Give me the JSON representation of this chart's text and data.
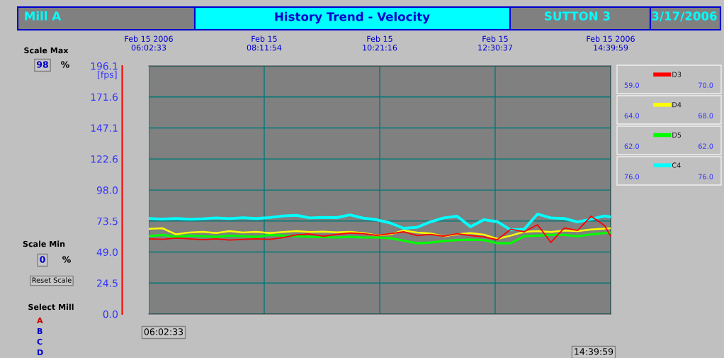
{
  "chart_data": {
    "type": "line",
    "title": "History Trend - Velocity",
    "ylabel": "[fps]",
    "x": [
      "2006-02-15T06:03",
      "2006-02-15T06:18",
      "2006-02-15T06:33",
      "2006-02-15T06:48",
      "2006-02-15T07:03",
      "2006-02-15T07:18",
      "2006-02-15T07:33",
      "2006-02-15T07:48",
      "2006-02-15T08:03",
      "2006-02-15T08:18",
      "2006-02-15T08:33",
      "2006-02-15T08:48",
      "2006-02-15T09:03",
      "2006-02-15T09:18",
      "2006-02-15T09:33",
      "2006-02-15T09:48",
      "2006-02-15T10:03",
      "2006-02-15T10:18",
      "2006-02-15T10:33",
      "2006-02-15T10:48",
      "2006-02-15T11:03",
      "2006-02-15T11:18",
      "2006-02-15T11:33",
      "2006-02-15T11:48",
      "2006-02-15T12:03",
      "2006-02-15T12:18",
      "2006-02-15T12:33",
      "2006-02-15T12:48",
      "2006-02-15T13:03",
      "2006-02-15T13:18",
      "2006-02-15T13:33",
      "2006-02-15T13:48",
      "2006-02-15T14:03",
      "2006-02-15T14:18",
      "2006-02-15T14:33",
      "2006-02-15T14:39:59"
    ],
    "series": [
      {
        "name": "D3",
        "color": "#ff0000",
        "values": [
          59.4,
          59.0,
          60.0,
          59.5,
          58.8,
          59.5,
          58.5,
          59.0,
          59.5,
          59.0,
          60.5,
          62.5,
          63.3,
          61.5,
          63.0,
          64.0,
          63.5,
          62.2,
          63.5,
          65.0,
          62.0,
          63.0,
          61.5,
          63.5,
          62.0,
          61.0,
          58.8,
          67.0,
          65.0,
          70.6,
          56.6,
          68.0,
          66.0,
          77.3,
          70.0,
          61.6
        ]
      },
      {
        "name": "D4",
        "color": "#ffff00",
        "values": [
          67.4,
          67.8,
          63.0,
          64.5,
          65.0,
          64.0,
          65.5,
          64.4,
          65.0,
          64.0,
          64.8,
          65.5,
          64.8,
          65.2,
          64.6,
          65.0,
          64.0,
          62.2,
          63.0,
          66.0,
          64.5,
          63.8,
          61.5,
          63.0,
          64.0,
          62.8,
          59.4,
          62.0,
          65.0,
          65.5,
          64.8,
          66.0,
          65.5,
          66.8,
          67.5,
          67.8
        ]
      },
      {
        "name": "D5",
        "color": "#00ff00",
        "values": [
          61.6,
          62.5,
          61.0,
          62.0,
          61.5,
          61.0,
          62.0,
          61.5,
          61.0,
          62.5,
          62.0,
          61.5,
          61.0,
          60.8,
          60.5,
          61.0,
          60.5,
          60.5,
          60.0,
          58.0,
          56.0,
          56.5,
          57.7,
          58.5,
          58.8,
          58.5,
          56.0,
          56.0,
          61.6,
          62.0,
          62.5,
          62.5,
          61.5,
          63.0,
          64.0,
          64.4
        ]
      },
      {
        "name": "C4",
        "color": "#00ffff",
        "values": [
          75.6,
          75.0,
          75.6,
          74.9,
          75.3,
          76.0,
          75.4,
          76.1,
          75.5,
          76.3,
          77.5,
          78.0,
          76.0,
          76.4,
          76.2,
          78.4,
          75.8,
          74.5,
          72.0,
          67.8,
          68.5,
          72.8,
          76.0,
          77.3,
          69.0,
          74.5,
          73.0,
          66.5,
          67.0,
          79.0,
          76.0,
          75.5,
          72.8,
          75.0,
          77.5,
          76.8
        ]
      }
    ],
    "xlim": [
      "2006-02-15T06:02:33",
      "2006-02-15T14:39:59"
    ],
    "xticks": [
      {
        "value": "2006-02-15T06:02:33",
        "label": "Feb 15 2006\n06:02:33"
      },
      {
        "value": "2006-02-15T08:11:54",
        "label": "Feb 15\n08:11:54"
      },
      {
        "value": "2006-02-15T10:21:16",
        "label": "Feb 15\n10:21:16"
      },
      {
        "value": "2006-02-15T12:30:37",
        "label": "Feb 15\n12:30:37"
      },
      {
        "value": "2006-02-15T14:39:59",
        "label": "Feb 15 2006\n14:39:59"
      }
    ],
    "ylim": [
      0,
      196.1
    ],
    "yticks": [
      {
        "value": 0,
        "label": "0.0"
      },
      24.5,
      {
        "value": 49.0,
        "label": "49.0"
      },
      73.5,
      {
        "value": 98.0,
        "label": "98.0"
      },
      122.6,
      147.1,
      171.6,
      196.1
    ],
    "grid": true,
    "legend": "right",
    "line_style": "solid",
    "marker": "none",
    "annotations": [
      "Mill A",
      "SUTTON 3",
      "3/17/2006",
      "Scale Max",
      "98",
      "%",
      "Scale Min",
      "0",
      "%",
      "Reset Scale",
      "Select Mill",
      "A",
      "B",
      "C",
      "D",
      "06:02:33",
      "14:39:59",
      "59.0",
      "70.0",
      "64.0",
      "68.0",
      "62.0",
      "62.0",
      "76.0",
      "76.0"
    ]
  }
}
